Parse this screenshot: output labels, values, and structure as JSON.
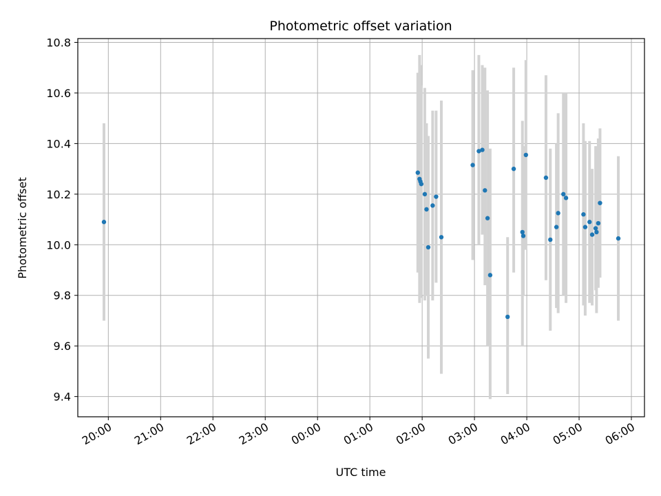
{
  "chart_data": {
    "type": "scatter",
    "title": "Photometric offset variation",
    "xlabel": "UTC time",
    "ylabel": "Photometric offset",
    "xlim": [
      "19:25",
      "30:15"
    ],
    "ylim": [
      9.32,
      10.815
    ],
    "x_ticks": [
      {
        "value": "20:00",
        "label": "20:00"
      },
      {
        "value": "21:00",
        "label": "21:00"
      },
      {
        "value": "22:00",
        "label": "22:00"
      },
      {
        "value": "23:00",
        "label": "23:00"
      },
      {
        "value": "24:00",
        "label": "00:00"
      },
      {
        "value": "25:00",
        "label": "01:00"
      },
      {
        "value": "26:00",
        "label": "02:00"
      },
      {
        "value": "27:00",
        "label": "03:00"
      },
      {
        "value": "28:00",
        "label": "04:00"
      },
      {
        "value": "29:00",
        "label": "05:00"
      },
      {
        "value": "30:00",
        "label": "06:00"
      }
    ],
    "y_ticks": [
      "9.4",
      "9.6",
      "9.8",
      "10.0",
      "10.2",
      "10.4",
      "10.6",
      "10.8"
    ],
    "grid": true,
    "marker_color": "#1f77b4",
    "errorbar_color": "#d3d3d3",
    "points": [
      {
        "t": "19:55",
        "y": 10.09,
        "lo": 9.7,
        "hi": 10.48
      },
      {
        "t": "25:55",
        "y": 10.285,
        "lo": 9.89,
        "hi": 10.68
      },
      {
        "t": "25:57",
        "y": 10.26,
        "lo": 9.77,
        "hi": 10.75
      },
      {
        "t": "25:58",
        "y": 10.25,
        "lo": 9.79,
        "hi": 10.71
      },
      {
        "t": "25:59",
        "y": 10.24,
        "lo": 9.8,
        "hi": 10.63
      },
      {
        "t": "26:03",
        "y": 10.2,
        "lo": 9.78,
        "hi": 10.62
      },
      {
        "t": "26:05",
        "y": 10.14,
        "lo": 9.8,
        "hi": 10.48
      },
      {
        "t": "26:07",
        "y": 9.99,
        "lo": 9.55,
        "hi": 10.43
      },
      {
        "t": "26:12",
        "y": 10.155,
        "lo": 9.78,
        "hi": 10.53
      },
      {
        "t": "26:16",
        "y": 10.19,
        "lo": 9.85,
        "hi": 10.53
      },
      {
        "t": "26:22",
        "y": 10.03,
        "lo": 9.49,
        "hi": 10.57
      },
      {
        "t": "26:58",
        "y": 10.315,
        "lo": 9.94,
        "hi": 10.69
      },
      {
        "t": "27:05",
        "y": 10.37,
        "lo": 10.0,
        "hi": 10.75
      },
      {
        "t": "27:09",
        "y": 10.375,
        "lo": 10.04,
        "hi": 10.71
      },
      {
        "t": "27:12",
        "y": 10.215,
        "lo": 9.84,
        "hi": 10.7
      },
      {
        "t": "27:15",
        "y": 10.105,
        "lo": 9.6,
        "hi": 10.61
      },
      {
        "t": "27:18",
        "y": 9.88,
        "lo": 9.39,
        "hi": 10.38
      },
      {
        "t": "27:38",
        "y": 9.715,
        "lo": 9.41,
        "hi": 10.03
      },
      {
        "t": "27:45",
        "y": 10.3,
        "lo": 9.89,
        "hi": 10.7
      },
      {
        "t": "27:55",
        "y": 10.05,
        "lo": 9.6,
        "hi": 10.49
      },
      {
        "t": "27:56",
        "y": 10.035,
        "lo": 9.8,
        "hi": 10.39
      },
      {
        "t": "27:59",
        "y": 10.355,
        "lo": 9.98,
        "hi": 10.73
      },
      {
        "t": "28:22",
        "y": 10.265,
        "lo": 9.86,
        "hi": 10.67
      },
      {
        "t": "28:27",
        "y": 10.02,
        "lo": 9.66,
        "hi": 10.38
      },
      {
        "t": "28:34",
        "y": 10.07,
        "lo": 9.75,
        "hi": 10.4
      },
      {
        "t": "28:36",
        "y": 10.125,
        "lo": 9.73,
        "hi": 10.52
      },
      {
        "t": "28:42",
        "y": 10.2,
        "lo": 9.8,
        "hi": 10.6
      },
      {
        "t": "28:45",
        "y": 10.185,
        "lo": 9.77,
        "hi": 10.6
      },
      {
        "t": "29:05",
        "y": 10.12,
        "lo": 9.76,
        "hi": 10.48
      },
      {
        "t": "29:07",
        "y": 10.07,
        "lo": 9.72,
        "hi": 10.41
      },
      {
        "t": "29:12",
        "y": 10.09,
        "lo": 9.77,
        "hi": 10.41
      },
      {
        "t": "29:15",
        "y": 10.04,
        "lo": 9.76,
        "hi": 10.3
      },
      {
        "t": "29:19",
        "y": 10.065,
        "lo": 9.82,
        "hi": 10.39
      },
      {
        "t": "29:20",
        "y": 10.05,
        "lo": 9.73,
        "hi": 10.37
      },
      {
        "t": "29:22",
        "y": 10.085,
        "lo": 9.83,
        "hi": 10.42
      },
      {
        "t": "29:24",
        "y": 10.165,
        "lo": 9.87,
        "hi": 10.46
      },
      {
        "t": "29:45",
        "y": 10.025,
        "lo": 9.7,
        "hi": 10.35
      }
    ]
  }
}
